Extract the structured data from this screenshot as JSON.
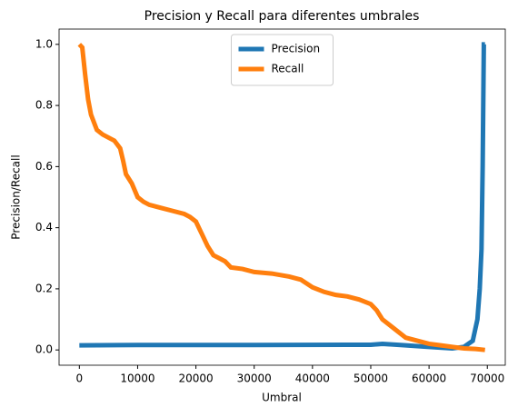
{
  "chart_data": {
    "type": "line",
    "title": "Precision y Recall para diferentes umbrales",
    "x_label": "Umbral",
    "y_label": "Precision/Recall",
    "series": [
      {
        "name": "Precision",
        "color": "#1f77b4",
        "x": [
          0,
          10000,
          30000,
          50000,
          52000,
          56000,
          60000,
          64000,
          66000,
          67500,
          68300,
          68700,
          69000,
          69200,
          69400,
          69600
        ],
        "values": [
          0.015,
          0.016,
          0.016,
          0.017,
          0.02,
          0.015,
          0.01,
          0.005,
          0.01,
          0.03,
          0.1,
          0.2,
          0.33,
          0.6,
          1.0,
          1.0
        ]
      },
      {
        "name": "Recall",
        "color": "#ff7f0e",
        "x": [
          0,
          500,
          1000,
          1500,
          2000,
          3000,
          4000,
          5000,
          6000,
          7000,
          7500,
          8000,
          9000,
          10000,
          11000,
          12000,
          14000,
          16000,
          18000,
          19000,
          20000,
          21000,
          22000,
          23000,
          24000,
          25000,
          26000,
          28000,
          30000,
          33000,
          36000,
          38000,
          40000,
          42000,
          44000,
          46000,
          48000,
          50000,
          51000,
          52000,
          54000,
          56000,
          58000,
          60000,
          62000,
          64000,
          66000,
          68000,
          69600
        ],
        "values": [
          1.0,
          0.99,
          0.9,
          0.82,
          0.77,
          0.72,
          0.705,
          0.695,
          0.685,
          0.66,
          0.62,
          0.575,
          0.545,
          0.5,
          0.485,
          0.475,
          0.465,
          0.455,
          0.445,
          0.435,
          0.42,
          0.38,
          0.34,
          0.31,
          0.3,
          0.29,
          0.27,
          0.265,
          0.255,
          0.25,
          0.24,
          0.23,
          0.205,
          0.19,
          0.18,
          0.175,
          0.165,
          0.15,
          0.13,
          0.1,
          0.07,
          0.04,
          0.03,
          0.02,
          0.015,
          0.01,
          0.005,
          0.003,
          0.0
        ]
      }
    ],
    "xlim": [
      -3480,
      73080
    ],
    "ylim": [
      -0.05,
      1.05
    ],
    "xticks": [
      0,
      10000,
      20000,
      30000,
      40000,
      50000,
      60000,
      70000
    ],
    "yticks": [
      {
        "value": 0,
        "label": "0.0"
      },
      {
        "value": 0.2,
        "label": "0.2"
      },
      {
        "value": 0.4,
        "label": "0.4"
      },
      {
        "value": 0.6,
        "label": "0.6"
      },
      {
        "value": 0.8,
        "label": "0.8"
      },
      {
        "value": 1,
        "label": "1.0"
      }
    ],
    "legend": "upper center",
    "grid": false
  }
}
